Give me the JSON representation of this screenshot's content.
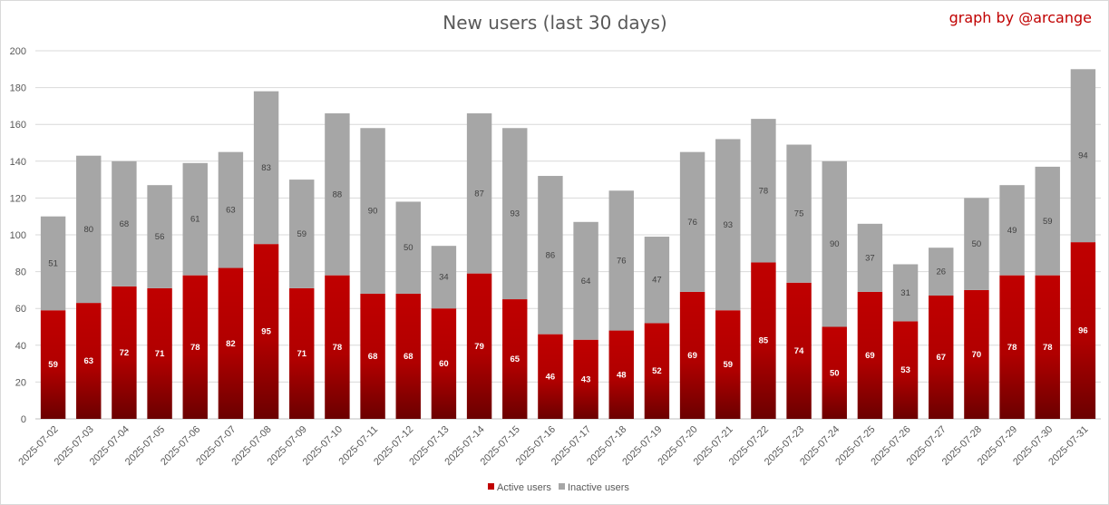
{
  "chart_data": {
    "type": "bar",
    "stacked": true,
    "title": "New users (last 30 days)",
    "credit": "graph by @arcange",
    "categories": [
      "2025-07-02",
      "2025-07-03",
      "2025-07-04",
      "2025-07-05",
      "2025-07-06",
      "2025-07-07",
      "2025-07-08",
      "2025-07-09",
      "2025-07-10",
      "2025-07-11",
      "2025-07-12",
      "2025-07-13",
      "2025-07-14",
      "2025-07-15",
      "2025-07-16",
      "2025-07-17",
      "2025-07-18",
      "2025-07-19",
      "2025-07-20",
      "2025-07-21",
      "2025-07-22",
      "2025-07-23",
      "2025-07-24",
      "2025-07-25",
      "2025-07-26",
      "2025-07-27",
      "2025-07-28",
      "2025-07-29",
      "2025-07-30",
      "2025-07-31"
    ],
    "series": [
      {
        "name": "Active users",
        "color": "#c00000",
        "values": [
          59,
          63,
          72,
          71,
          78,
          82,
          95,
          71,
          78,
          68,
          68,
          60,
          79,
          65,
          46,
          43,
          48,
          52,
          69,
          59,
          85,
          74,
          50,
          69,
          53,
          67,
          70,
          78,
          78,
          96
        ]
      },
      {
        "name": "Inactive users",
        "color": "#a6a6a6",
        "values": [
          51,
          80,
          68,
          56,
          61,
          63,
          83,
          59,
          88,
          90,
          50,
          34,
          87,
          93,
          86,
          64,
          76,
          47,
          76,
          93,
          78,
          75,
          90,
          37,
          31,
          26,
          50,
          49,
          59,
          94
        ]
      }
    ],
    "ylim": [
      0,
      200
    ],
    "yticks": [
      0,
      20,
      40,
      60,
      80,
      100,
      120,
      140,
      160,
      180,
      200
    ],
    "grid": true,
    "legend_position": "bottom"
  }
}
